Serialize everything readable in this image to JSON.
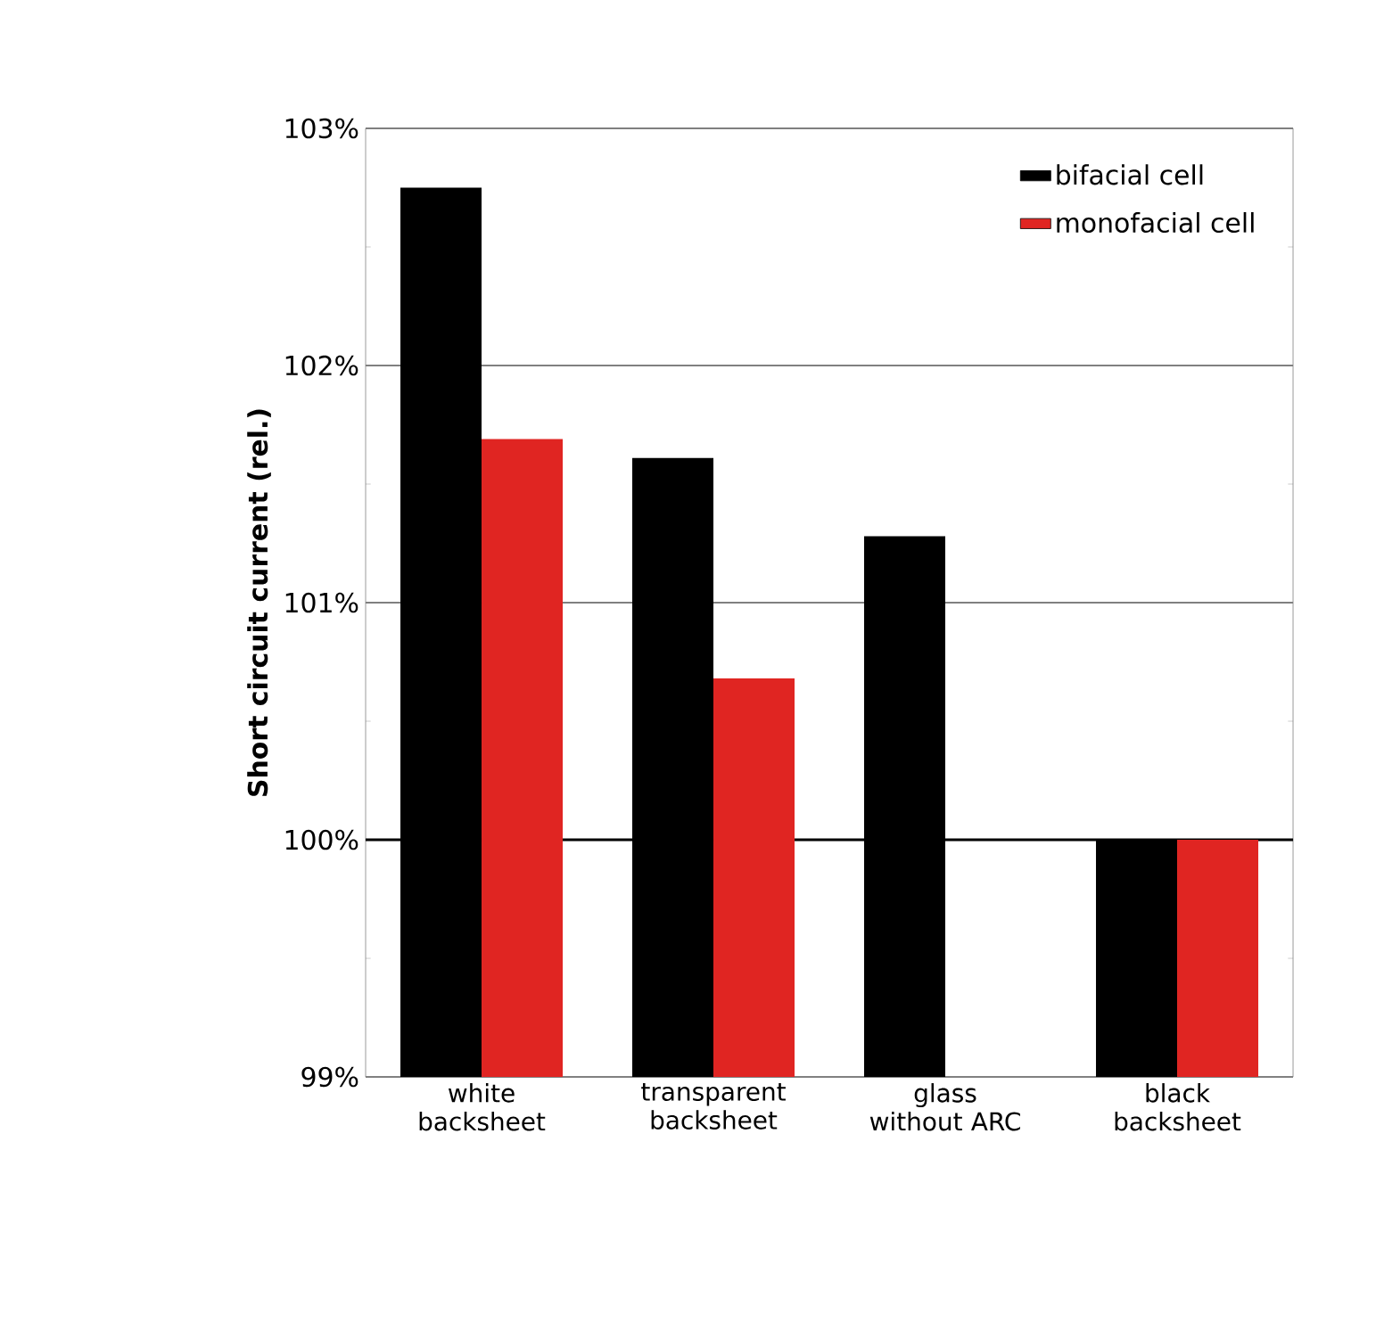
{
  "chart_data": {
    "type": "bar",
    "ylabel": "Short circuit current (rel.)",
    "categories": [
      "white backsheet",
      "transparent backsheet",
      "glass without ARC",
      "black backsheet"
    ],
    "series": [
      {
        "name": "bifacial cell",
        "color": "#000000",
        "values": [
          102.75,
          101.61,
          101.28,
          100
        ]
      },
      {
        "name": "monofacial cell",
        "color": "#e02522",
        "values": [
          101.69,
          100.68,
          null,
          100
        ]
      }
    ],
    "ylim": [
      99,
      103
    ],
    "yticks": [
      {
        "value": 99,
        "label": "99%"
      },
      {
        "value": 100,
        "label": "100%"
      },
      {
        "value": 101,
        "label": "101%"
      },
      {
        "value": 102,
        "label": "102%"
      },
      {
        "value": 103,
        "label": "103%"
      }
    ],
    "ref_lines": [
      {
        "axis": "y",
        "value": 100,
        "color": "#000000"
      }
    ],
    "grid": "y",
    "legend": "top right"
  }
}
